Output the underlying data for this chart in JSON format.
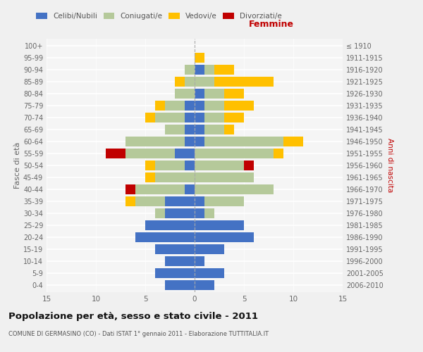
{
  "age_groups": [
    "0-4",
    "5-9",
    "10-14",
    "15-19",
    "20-24",
    "25-29",
    "30-34",
    "35-39",
    "40-44",
    "45-49",
    "50-54",
    "55-59",
    "60-64",
    "65-69",
    "70-74",
    "75-79",
    "80-84",
    "85-89",
    "90-94",
    "95-99",
    "100+"
  ],
  "birth_years": [
    "2006-2010",
    "2001-2005",
    "1996-2000",
    "1991-1995",
    "1986-1990",
    "1981-1985",
    "1976-1980",
    "1971-1975",
    "1966-1970",
    "1961-1965",
    "1956-1960",
    "1951-1955",
    "1946-1950",
    "1941-1945",
    "1936-1940",
    "1931-1935",
    "1926-1930",
    "1921-1925",
    "1916-1920",
    "1911-1915",
    "≤ 1910"
  ],
  "male": {
    "celibi": [
      3,
      4,
      3,
      4,
      6,
      5,
      3,
      3,
      1,
      0,
      1,
      2,
      1,
      1,
      1,
      1,
      0,
      0,
      0,
      0,
      0
    ],
    "coniugati": [
      0,
      0,
      0,
      0,
      0,
      0,
      1,
      3,
      5,
      4,
      3,
      5,
      6,
      2,
      3,
      2,
      2,
      1,
      1,
      0,
      0
    ],
    "vedovi": [
      0,
      0,
      0,
      0,
      0,
      0,
      0,
      1,
      0,
      1,
      1,
      0,
      0,
      0,
      1,
      1,
      0,
      1,
      0,
      0,
      0
    ],
    "divorziati": [
      0,
      0,
      0,
      0,
      0,
      0,
      0,
      0,
      1,
      0,
      0,
      2,
      0,
      0,
      0,
      0,
      0,
      0,
      0,
      0,
      0
    ]
  },
  "female": {
    "nubili": [
      2,
      3,
      1,
      3,
      6,
      5,
      1,
      1,
      0,
      0,
      0,
      0,
      1,
      1,
      1,
      1,
      1,
      0,
      1,
      0,
      0
    ],
    "coniugate": [
      0,
      0,
      0,
      0,
      0,
      0,
      1,
      4,
      8,
      6,
      5,
      8,
      8,
      2,
      2,
      2,
      2,
      2,
      1,
      0,
      0
    ],
    "vedove": [
      0,
      0,
      0,
      0,
      0,
      0,
      0,
      0,
      0,
      0,
      0,
      1,
      2,
      1,
      2,
      3,
      2,
      6,
      2,
      1,
      0
    ],
    "divorziate": [
      0,
      0,
      0,
      0,
      0,
      0,
      0,
      0,
      0,
      0,
      1,
      0,
      0,
      0,
      0,
      0,
      0,
      0,
      0,
      0,
      0
    ]
  },
  "color_celibi": "#4472c4",
  "color_coniugati": "#b5c99a",
  "color_vedovi": "#ffc000",
  "color_divorziati": "#c00000",
  "xlim": 15,
  "title": "Popolazione per età, sesso e stato civile - 2011",
  "subtitle": "COMUNE DI GERMASINO (CO) - Dati ISTAT 1° gennaio 2011 - Elaborazione TUTTITALIA.IT",
  "ylabel_left": "Fasce di età",
  "ylabel_right": "Anni di nascita",
  "xlabel_right": "Femmine",
  "bg_color": "#f5f5f5",
  "grid_color": "#ffffff",
  "bar_height": 0.8
}
